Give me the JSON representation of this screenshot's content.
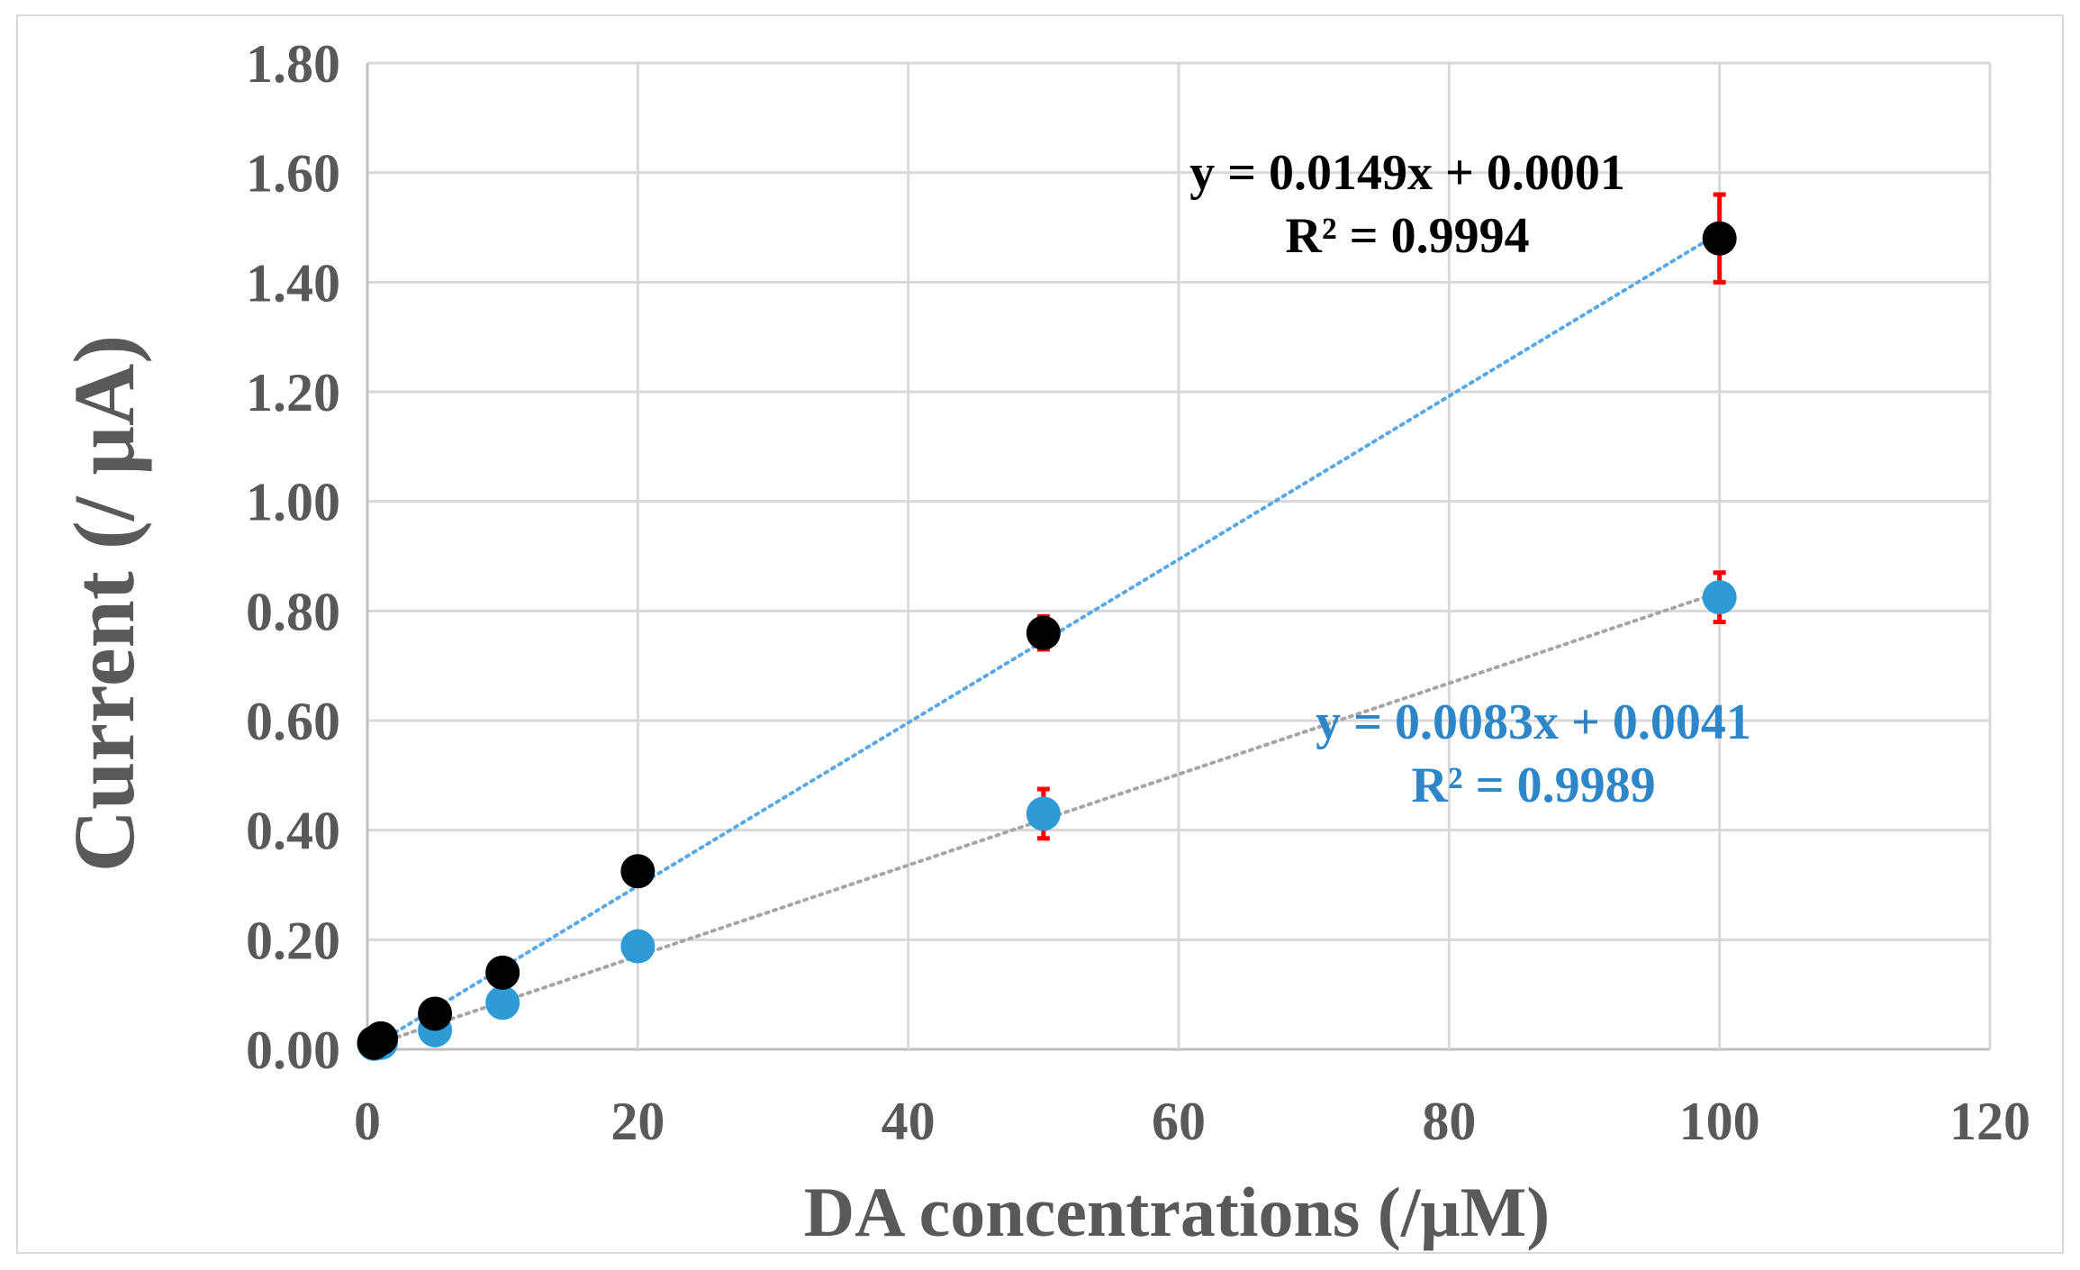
{
  "chart_data": {
    "type": "scatter",
    "xlabel": "DA concentrations (/μM)",
    "ylabel": "Current (/ μA)",
    "xlim": [
      0,
      120
    ],
    "ylim": [
      0,
      1.8
    ],
    "x_ticks": [
      "0",
      "20",
      "40",
      "60",
      "80",
      "100",
      "120"
    ],
    "y_ticks": [
      "0.00",
      "0.20",
      "0.40",
      "0.60",
      "0.80",
      "1.00",
      "1.20",
      "1.40",
      "1.60",
      "1.80"
    ],
    "grid": true,
    "series": [
      {
        "name": "series-black",
        "marker_color": "#000000",
        "trendline_color": "#5aa9e6",
        "x": [
          0.5,
          1,
          5,
          10,
          20,
          50,
          100
        ],
        "y": [
          0.012,
          0.02,
          0.065,
          0.14,
          0.325,
          0.76,
          1.48
        ],
        "error": [
          0,
          0,
          0,
          0,
          0,
          0.03,
          0.08
        ],
        "trendline": {
          "slope": 0.0149,
          "intercept": 0.0001
        },
        "equation": "y = 0.0149x + 0.0001",
        "r_squared": "R² = 0.9994",
        "label_color": "#000000"
      },
      {
        "name": "series-blue",
        "marker_color": "#2e9bd6",
        "trendline_color": "#a6a6a6",
        "x": [
          0.5,
          1,
          5,
          10,
          20,
          50,
          100
        ],
        "y": [
          0.01,
          0.012,
          0.035,
          0.085,
          0.188,
          0.43,
          0.825
        ],
        "error": [
          0,
          0,
          0,
          0,
          0,
          0.045,
          0.045
        ],
        "trendline": {
          "slope": 0.0083,
          "intercept": 0.0041
        },
        "equation": "y = 0.0083x + 0.0041",
        "r_squared": "R² = 0.9989",
        "label_color": "#2e86c8"
      }
    ],
    "error_bar_color": "#ff0000"
  }
}
